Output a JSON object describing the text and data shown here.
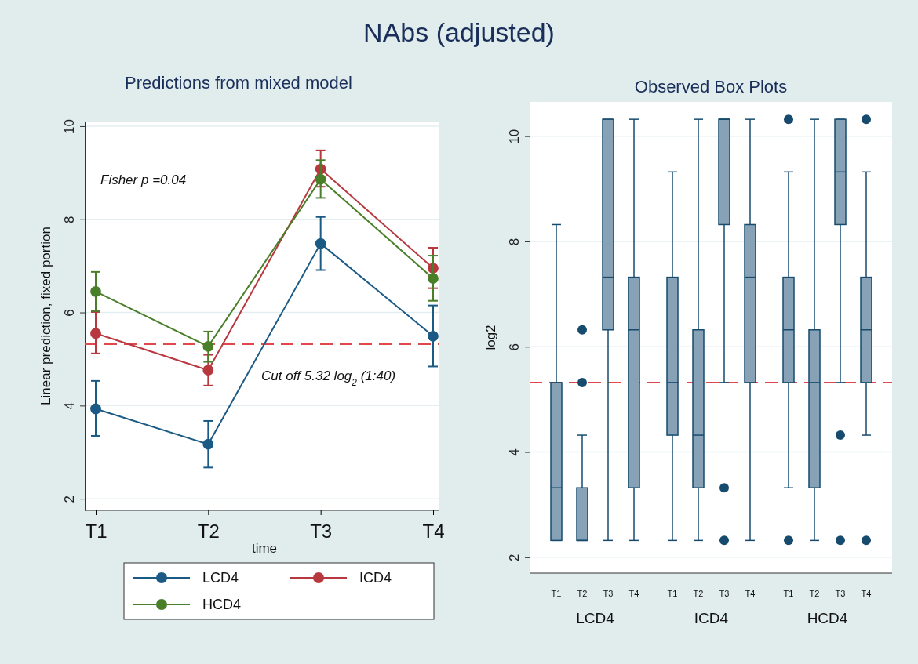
{
  "chart_data": [
    {
      "type": "line",
      "title": "NAbs (adjusted)",
      "subtitle": "Predictions from mixed model",
      "xlabel": "time",
      "ylabel": "Linear prediction, fixed portion",
      "categories": [
        "T1",
        "T2",
        "T3",
        "T4"
      ],
      "series": [
        {
          "name": "LCD4",
          "color": "#1a5a85",
          "values": [
            3.93,
            3.17,
            7.48,
            5.49
          ],
          "errors": [
            [
              3.35,
              4.53
            ],
            [
              2.67,
              3.67
            ],
            [
              6.91,
              8.05
            ],
            [
              4.84,
              6.15
            ]
          ]
        },
        {
          "name": "ICD4",
          "color": "#b8383f",
          "values": [
            5.55,
            4.76,
            9.08,
            6.95
          ],
          "errors": [
            [
              5.12,
              6.01
            ],
            [
              4.43,
              5.09
            ],
            [
              8.7,
              9.48
            ],
            [
              6.52,
              7.39
            ]
          ]
        },
        {
          "name": "HCD4",
          "color": "#4a7f2a",
          "values": [
            6.45,
            5.27,
            8.86,
            6.73
          ],
          "errors": [
            [
              6.03,
              6.87
            ],
            [
              4.94,
              5.59
            ],
            [
              8.46,
              9.27
            ],
            [
              6.25,
              7.22
            ]
          ]
        }
      ],
      "ylim": [
        1.75,
        10.1
      ],
      "yticks": [
        2,
        4,
        6,
        8,
        10
      ],
      "grid": "y",
      "legend": "bottom",
      "marker": "circle",
      "line_style": "solid",
      "ref_lines": [
        {
          "axis": "y",
          "value": 5.32,
          "label": "Cut off 5.32 log$_{2}$ (1:40)",
          "color": "#e0474c",
          "line_style": "dashed"
        }
      ],
      "annotations": [
        "Fisher p =0.04"
      ]
    },
    {
      "type": "box",
      "title": "Observed Box Plots",
      "ylabel": "log2",
      "categories": [
        "T1",
        "T2",
        "T3",
        "T4",
        "T1",
        "T2",
        "T3",
        "T4",
        "T1",
        "T2",
        "T3",
        "T4"
      ],
      "color": "#87a2b7",
      "boxes": [
        {
          "low": 2.32,
          "q1": 2.32,
          "median": 3.32,
          "q3": 5.32,
          "high": 8.32
        },
        {
          "low": 2.32,
          "q1": 2.32,
          "median": 2.32,
          "q3": 3.32,
          "high": 4.32,
          "outliers": [
            5.32,
            6.32
          ]
        },
        {
          "low": 2.32,
          "q1": 6.32,
          "median": 7.32,
          "q3": 10.32,
          "high": 10.32
        },
        {
          "low": 2.32,
          "q1": 3.32,
          "median": 6.32,
          "q3": 7.32,
          "high": 10.32
        },
        {
          "low": 2.32,
          "q1": 4.32,
          "median": 5.32,
          "q3": 7.32,
          "high": 9.32
        },
        {
          "low": 2.32,
          "q1": 3.32,
          "median": 4.32,
          "q3": 6.32,
          "high": 10.32
        },
        {
          "low": 5.32,
          "q1": 8.32,
          "median": 10.32,
          "q3": 10.32,
          "high": 10.32,
          "outliers": [
            2.32,
            3.32
          ]
        },
        {
          "low": 2.32,
          "q1": 5.32,
          "median": 7.32,
          "q3": 8.32,
          "high": 10.32
        },
        {
          "low": 3.32,
          "q1": 5.32,
          "median": 6.32,
          "q3": 7.32,
          "high": 9.32,
          "outliers": [
            2.32,
            10.32
          ]
        },
        {
          "low": 2.32,
          "q1": 3.32,
          "median": 5.32,
          "q3": 6.32,
          "high": 10.32
        },
        {
          "low": 5.32,
          "q1": 8.32,
          "median": 9.32,
          "q3": 10.32,
          "high": 10.32,
          "outliers": [
            2.32,
            4.32
          ]
        },
        {
          "low": 4.32,
          "q1": 5.32,
          "median": 6.32,
          "q3": 7.32,
          "high": 9.32,
          "outliers": [
            2.32,
            10.32
          ]
        }
      ],
      "ylim": [
        1.7,
        10.65
      ],
      "yticks": [
        2,
        4,
        6,
        8,
        10
      ],
      "grid": "y",
      "ref_lines": [
        {
          "axis": "y",
          "value": 5.32,
          "color": "#e0474c",
          "line_style": "dashed"
        }
      ],
      "annotations": [
        "LCD4",
        "ICD4",
        "HCD4"
      ]
    }
  ]
}
